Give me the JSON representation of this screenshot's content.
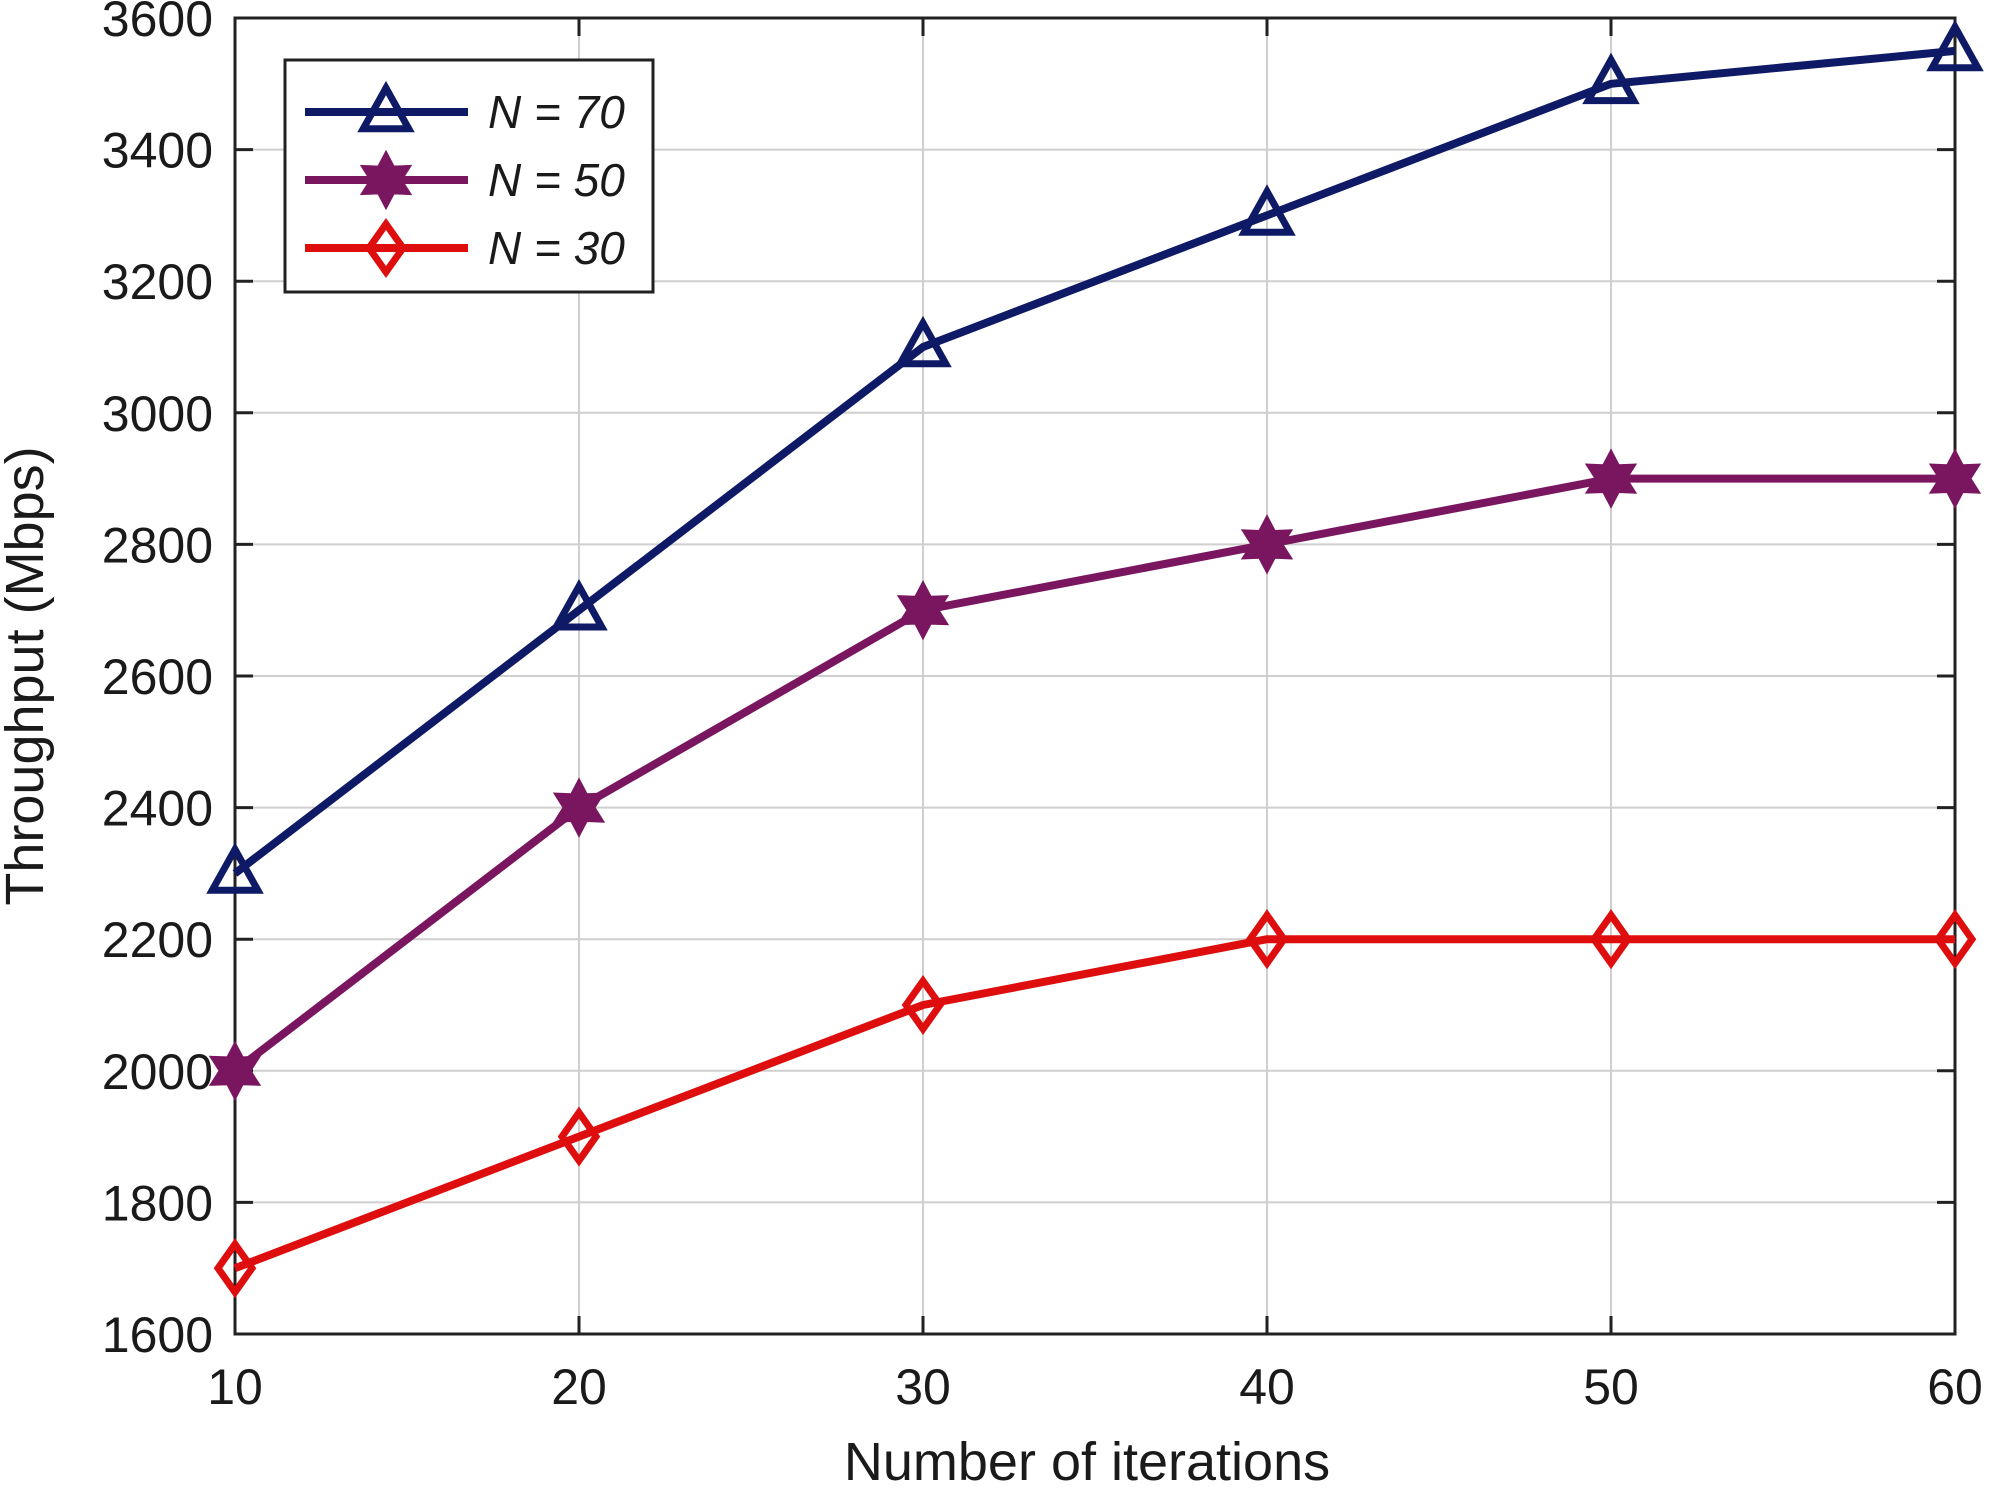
{
  "chart_data": {
    "type": "line",
    "title": "",
    "xlabel": "Number of iterations",
    "ylabel": "Throughput (Mbps)",
    "x": [
      10,
      20,
      30,
      40,
      50,
      60
    ],
    "xlim": [
      10,
      60
    ],
    "ylim": [
      1600,
      3600
    ],
    "xticks": [
      10,
      20,
      30,
      40,
      50,
      60
    ],
    "yticks": [
      1600,
      1800,
      2000,
      2200,
      2400,
      2600,
      2800,
      3000,
      3200,
      3400,
      3600
    ],
    "grid": true,
    "legend_position": "top-left",
    "series": [
      {
        "name": "N = 70",
        "marker": "triangle",
        "color": "#0f1a66",
        "values": [
          2300,
          2700,
          3100,
          3300,
          3500,
          3550
        ]
      },
      {
        "name": "N = 50",
        "marker": "hexagram",
        "color": "#7a1660",
        "values": [
          2000,
          2400,
          2700,
          2800,
          2900,
          2900
        ]
      },
      {
        "name": "N = 30",
        "marker": "diamond",
        "color": "#de0e0e",
        "values": [
          1700,
          1900,
          2100,
          2200,
          2200,
          2200
        ]
      }
    ]
  }
}
